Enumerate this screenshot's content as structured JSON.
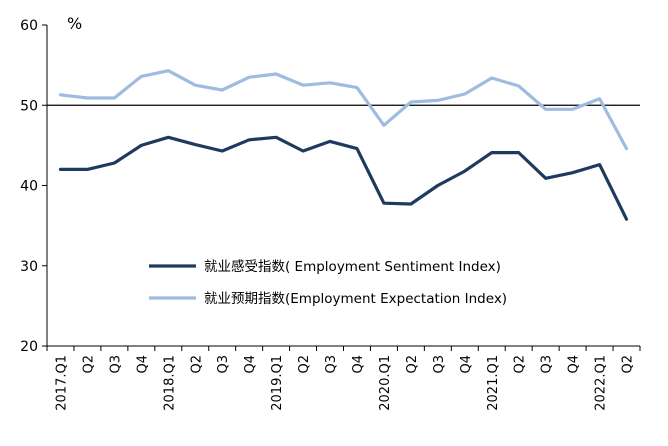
{
  "chart_data": {
    "type": "line",
    "title": "",
    "xlabel": "",
    "ylabel": "%",
    "ylim": [
      20,
      60
    ],
    "yticks": [
      20,
      30,
      40,
      50,
      60
    ],
    "reference_line": 50,
    "grid": false,
    "legend_position": "center",
    "categories": [
      "2017.Q1",
      "Q2",
      "Q3",
      "Q4",
      "2018.Q1",
      "Q2",
      "Q3",
      "Q4",
      "2019.Q1",
      "Q2",
      "Q3",
      "Q4",
      "2020.Q1",
      "Q2",
      "Q3",
      "Q4",
      "2021.Q1",
      "Q2",
      "Q3",
      "Q4",
      "2022.Q1",
      "Q2"
    ],
    "series": [
      {
        "name": "就业感受指数( Employment Sentiment Index)",
        "color": "#1f3a5f",
        "values": [
          42.0,
          42.0,
          42.8,
          45.0,
          46.0,
          45.1,
          44.3,
          45.7,
          46.0,
          44.3,
          45.5,
          44.6,
          37.8,
          37.7,
          40.0,
          41.8,
          44.1,
          44.1,
          40.9,
          41.6,
          42.6,
          35.8
        ]
      },
      {
        "name": "就业预期指数(Employment Expectation Index)",
        "color": "#9dbce0",
        "values": [
          51.3,
          50.9,
          50.9,
          53.6,
          54.3,
          52.5,
          51.9,
          53.5,
          53.9,
          52.5,
          52.8,
          52.2,
          47.5,
          50.4,
          50.6,
          51.4,
          53.4,
          52.4,
          49.5,
          49.5,
          50.8,
          44.6
        ]
      }
    ]
  }
}
